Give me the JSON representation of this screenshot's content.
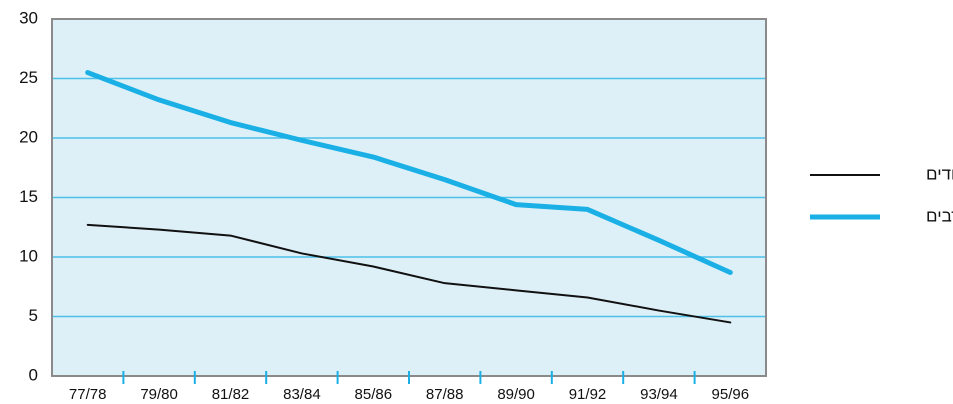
{
  "chart_data": {
    "type": "line",
    "categories": [
      "77/78",
      "79/80",
      "81/82",
      "83/84",
      "85/86",
      "87/88",
      "89/90",
      "91/92",
      "93/94",
      "95/96"
    ],
    "series": [
      {
        "name": "יהודים",
        "color": "#111111",
        "width": 2,
        "values": [
          12.7,
          12.3,
          11.8,
          10.3,
          9.2,
          7.8,
          7.2,
          6.6,
          5.5,
          4.5
        ]
      },
      {
        "name": "ערבים",
        "color": "#1ab0e6",
        "width": 5,
        "values": [
          25.5,
          23.2,
          21.3,
          19.8,
          18.4,
          16.5,
          14.4,
          14.0,
          11.4,
          8.7
        ]
      }
    ],
    "ylim": [
      0,
      30
    ],
    "yticks": [
      0,
      5,
      10,
      15,
      20,
      25,
      30
    ],
    "grid": true,
    "legend": "right"
  }
}
